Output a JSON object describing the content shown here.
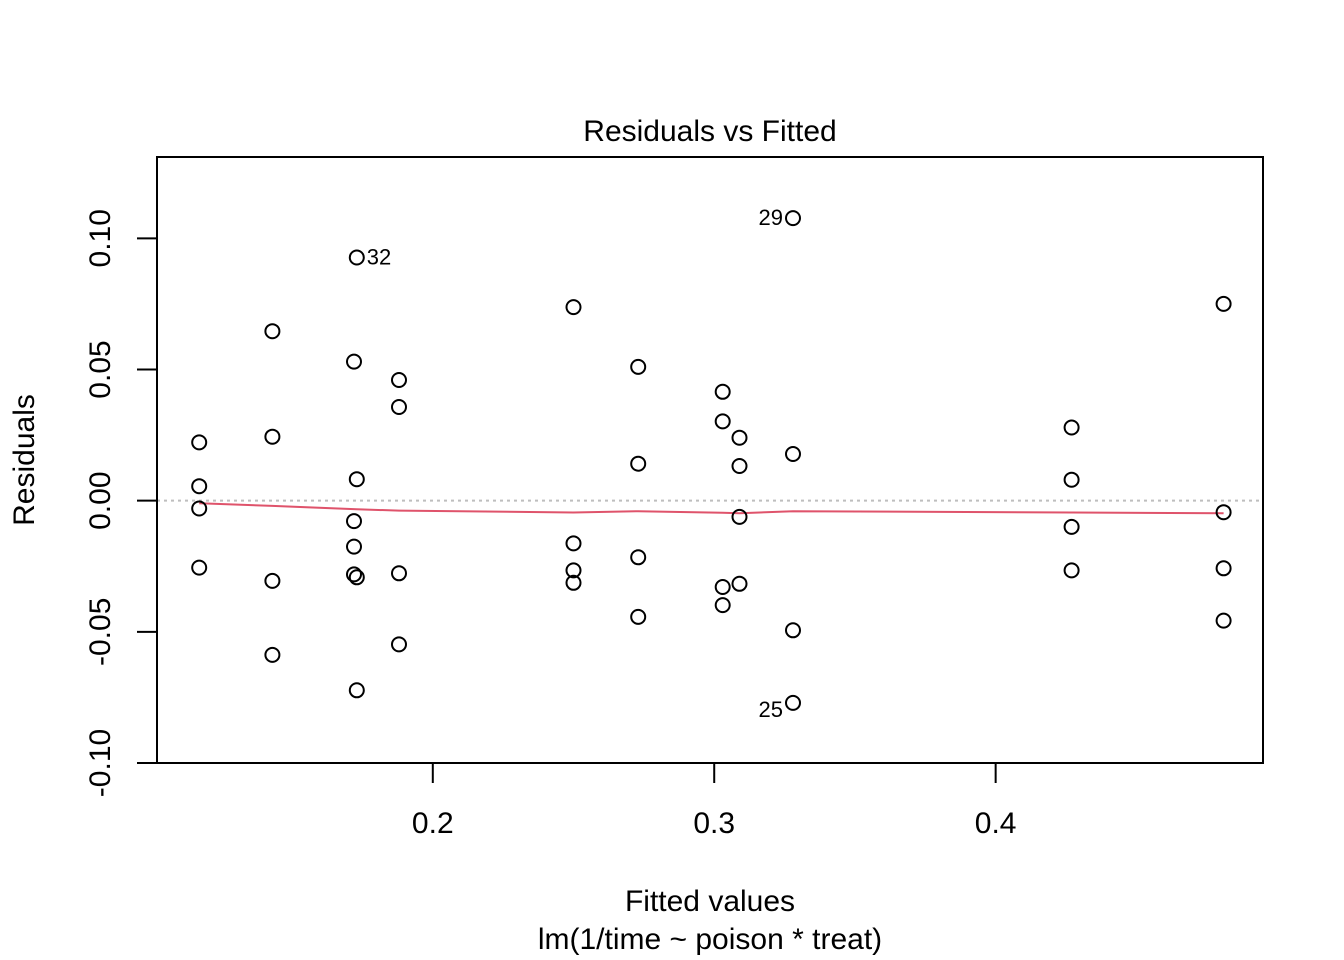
{
  "chart_data": {
    "type": "scatter",
    "title": "Residuals vs Fitted",
    "xlabel": "Fitted values",
    "subtitle": "lm(1/time ~ poison * treat)",
    "ylabel": "Residuals",
    "xlim": [
      0.102,
      0.495
    ],
    "ylim": [
      -0.1,
      0.131
    ],
    "x_ticks": [
      0.2,
      0.3,
      0.4
    ],
    "x_tick_labels": [
      "0.2",
      "0.3",
      "0.4"
    ],
    "y_ticks": [
      -0.1,
      -0.05,
      0.0,
      0.05,
      0.1
    ],
    "y_tick_labels": [
      "-0.10",
      "-0.05",
      "0.00",
      "0.05",
      "0.10"
    ],
    "reference_line": {
      "y": 0,
      "style": "dotted",
      "color": "#bebebe"
    },
    "points": [
      {
        "x": 0.117,
        "y": 0.0222
      },
      {
        "x": 0.117,
        "y": 0.0055
      },
      {
        "x": 0.117,
        "y": -0.003
      },
      {
        "x": 0.117,
        "y": -0.0255
      },
      {
        "x": 0.143,
        "y": 0.0646
      },
      {
        "x": 0.143,
        "y": 0.0244
      },
      {
        "x": 0.143,
        "y": -0.0306
      },
      {
        "x": 0.143,
        "y": -0.0588
      },
      {
        "x": 0.172,
        "y": 0.053
      },
      {
        "x": 0.172,
        "y": -0.0078
      },
      {
        "x": 0.172,
        "y": -0.0175
      },
      {
        "x": 0.172,
        "y": -0.0281
      },
      {
        "x": 0.173,
        "y": 0.0927,
        "label": "32"
      },
      {
        "x": 0.173,
        "y": 0.0082
      },
      {
        "x": 0.173,
        "y": -0.0292
      },
      {
        "x": 0.173,
        "y": -0.0723
      },
      {
        "x": 0.188,
        "y": 0.046
      },
      {
        "x": 0.188,
        "y": 0.0357
      },
      {
        "x": 0.188,
        "y": -0.0277
      },
      {
        "x": 0.188,
        "y": -0.0548
      },
      {
        "x": 0.25,
        "y": 0.0738
      },
      {
        "x": 0.25,
        "y": -0.0163
      },
      {
        "x": 0.25,
        "y": -0.0266
      },
      {
        "x": 0.25,
        "y": -0.0313
      },
      {
        "x": 0.273,
        "y": 0.051
      },
      {
        "x": 0.273,
        "y": 0.0141
      },
      {
        "x": 0.273,
        "y": -0.0216
      },
      {
        "x": 0.273,
        "y": -0.0443
      },
      {
        "x": 0.303,
        "y": 0.0415
      },
      {
        "x": 0.303,
        "y": 0.0302
      },
      {
        "x": 0.303,
        "y": -0.0329
      },
      {
        "x": 0.303,
        "y": -0.0398
      },
      {
        "x": 0.309,
        "y": 0.024
      },
      {
        "x": 0.309,
        "y": 0.0132
      },
      {
        "x": 0.309,
        "y": -0.0062
      },
      {
        "x": 0.309,
        "y": -0.0317
      },
      {
        "x": 0.328,
        "y": 0.1077,
        "label": "29"
      },
      {
        "x": 0.328,
        "y": 0.0178
      },
      {
        "x": 0.328,
        "y": -0.0494
      },
      {
        "x": 0.328,
        "y": -0.0771,
        "label": "25"
      },
      {
        "x": 0.427,
        "y": 0.0279
      },
      {
        "x": 0.427,
        "y": 0.008
      },
      {
        "x": 0.427,
        "y": -0.01
      },
      {
        "x": 0.427,
        "y": -0.0266
      },
      {
        "x": 0.481,
        "y": 0.075
      },
      {
        "x": 0.481,
        "y": -0.0044
      },
      {
        "x": 0.481,
        "y": -0.0258
      },
      {
        "x": 0.481,
        "y": -0.0457
      }
    ],
    "smooth_line": {
      "color": "#DF536B",
      "points": [
        {
          "x": 0.117,
          "y": -0.001
        },
        {
          "x": 0.143,
          "y": -0.002
        },
        {
          "x": 0.173,
          "y": -0.0033
        },
        {
          "x": 0.188,
          "y": -0.0038
        },
        {
          "x": 0.25,
          "y": -0.0045
        },
        {
          "x": 0.273,
          "y": -0.004
        },
        {
          "x": 0.303,
          "y": -0.0046
        },
        {
          "x": 0.309,
          "y": -0.0048
        },
        {
          "x": 0.328,
          "y": -0.004
        },
        {
          "x": 0.427,
          "y": -0.0045
        },
        {
          "x": 0.481,
          "y": -0.0048
        }
      ]
    }
  }
}
